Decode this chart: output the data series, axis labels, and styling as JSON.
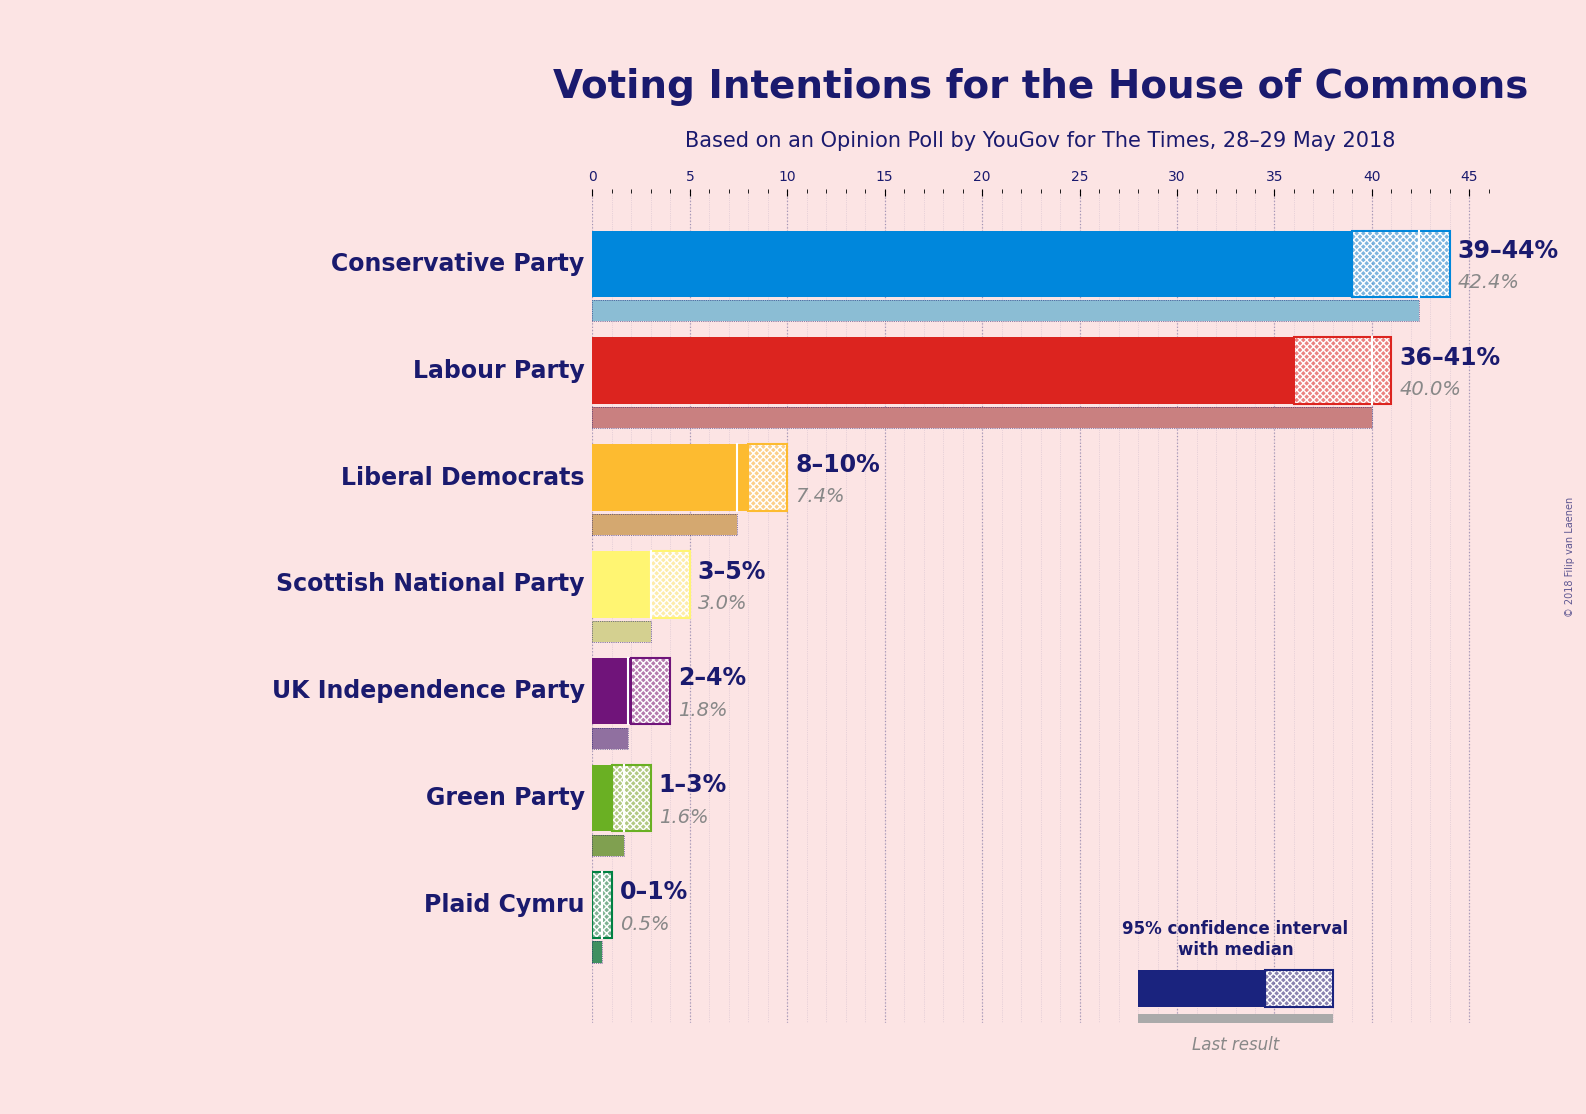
{
  "title": "Voting Intentions for the House of Commons",
  "subtitle": "Based on an Opinion Poll by YouGov for The Times, 28–29 May 2018",
  "copyright": "© 2018 Filip van Laenen",
  "background_color": "#fce4e4",
  "parties": [
    {
      "name": "Conservative Party",
      "median": 42.4,
      "ci_low": 39,
      "ci_high": 44,
      "last_result": 42.4,
      "color": "#0087DC",
      "last_color": "#8bbdd4",
      "label": "39–44%",
      "sublabel": "42.4%"
    },
    {
      "name": "Labour Party",
      "median": 40.0,
      "ci_low": 36,
      "ci_high": 41,
      "last_result": 40.0,
      "color": "#DC241F",
      "last_color": "#c98080",
      "label": "36–41%",
      "sublabel": "40.0%"
    },
    {
      "name": "Liberal Democrats",
      "median": 7.4,
      "ci_low": 8,
      "ci_high": 10,
      "last_result": 7.4,
      "color": "#FDBB30",
      "last_color": "#d4a870",
      "label": "8–10%",
      "sublabel": "7.4%"
    },
    {
      "name": "Scottish National Party",
      "median": 3.0,
      "ci_low": 3,
      "ci_high": 5,
      "last_result": 3.0,
      "color": "#FFF572",
      "last_color": "#d4d090",
      "label": "3–5%",
      "sublabel": "3.0%"
    },
    {
      "name": "UK Independence Party",
      "median": 1.8,
      "ci_low": 2,
      "ci_high": 4,
      "last_result": 1.8,
      "color": "#70147A",
      "last_color": "#9070a0",
      "label": "2–4%",
      "sublabel": "1.8%"
    },
    {
      "name": "Green Party",
      "median": 1.6,
      "ci_low": 1,
      "ci_high": 3,
      "last_result": 1.6,
      "color": "#6AB023",
      "last_color": "#80a050",
      "label": "1–3%",
      "sublabel": "1.6%"
    },
    {
      "name": "Plaid Cymru",
      "median": 0.5,
      "ci_low": 0,
      "ci_high": 1,
      "last_result": 0.5,
      "color": "#008142",
      "last_color": "#409060",
      "label": "0–1%",
      "sublabel": "0.5%"
    }
  ],
  "xlim_max": 46,
  "tick_interval": 5,
  "text_color_dark": "#1a1a6e",
  "text_color_gray": "#888888",
  "label_fontsize": 17,
  "sublabel_fontsize": 14,
  "party_fontsize": 17,
  "title_fontsize": 28,
  "subtitle_fontsize": 15,
  "legend_solid_color": "#1a237e",
  "legend_last_color": "#aaaaaa"
}
